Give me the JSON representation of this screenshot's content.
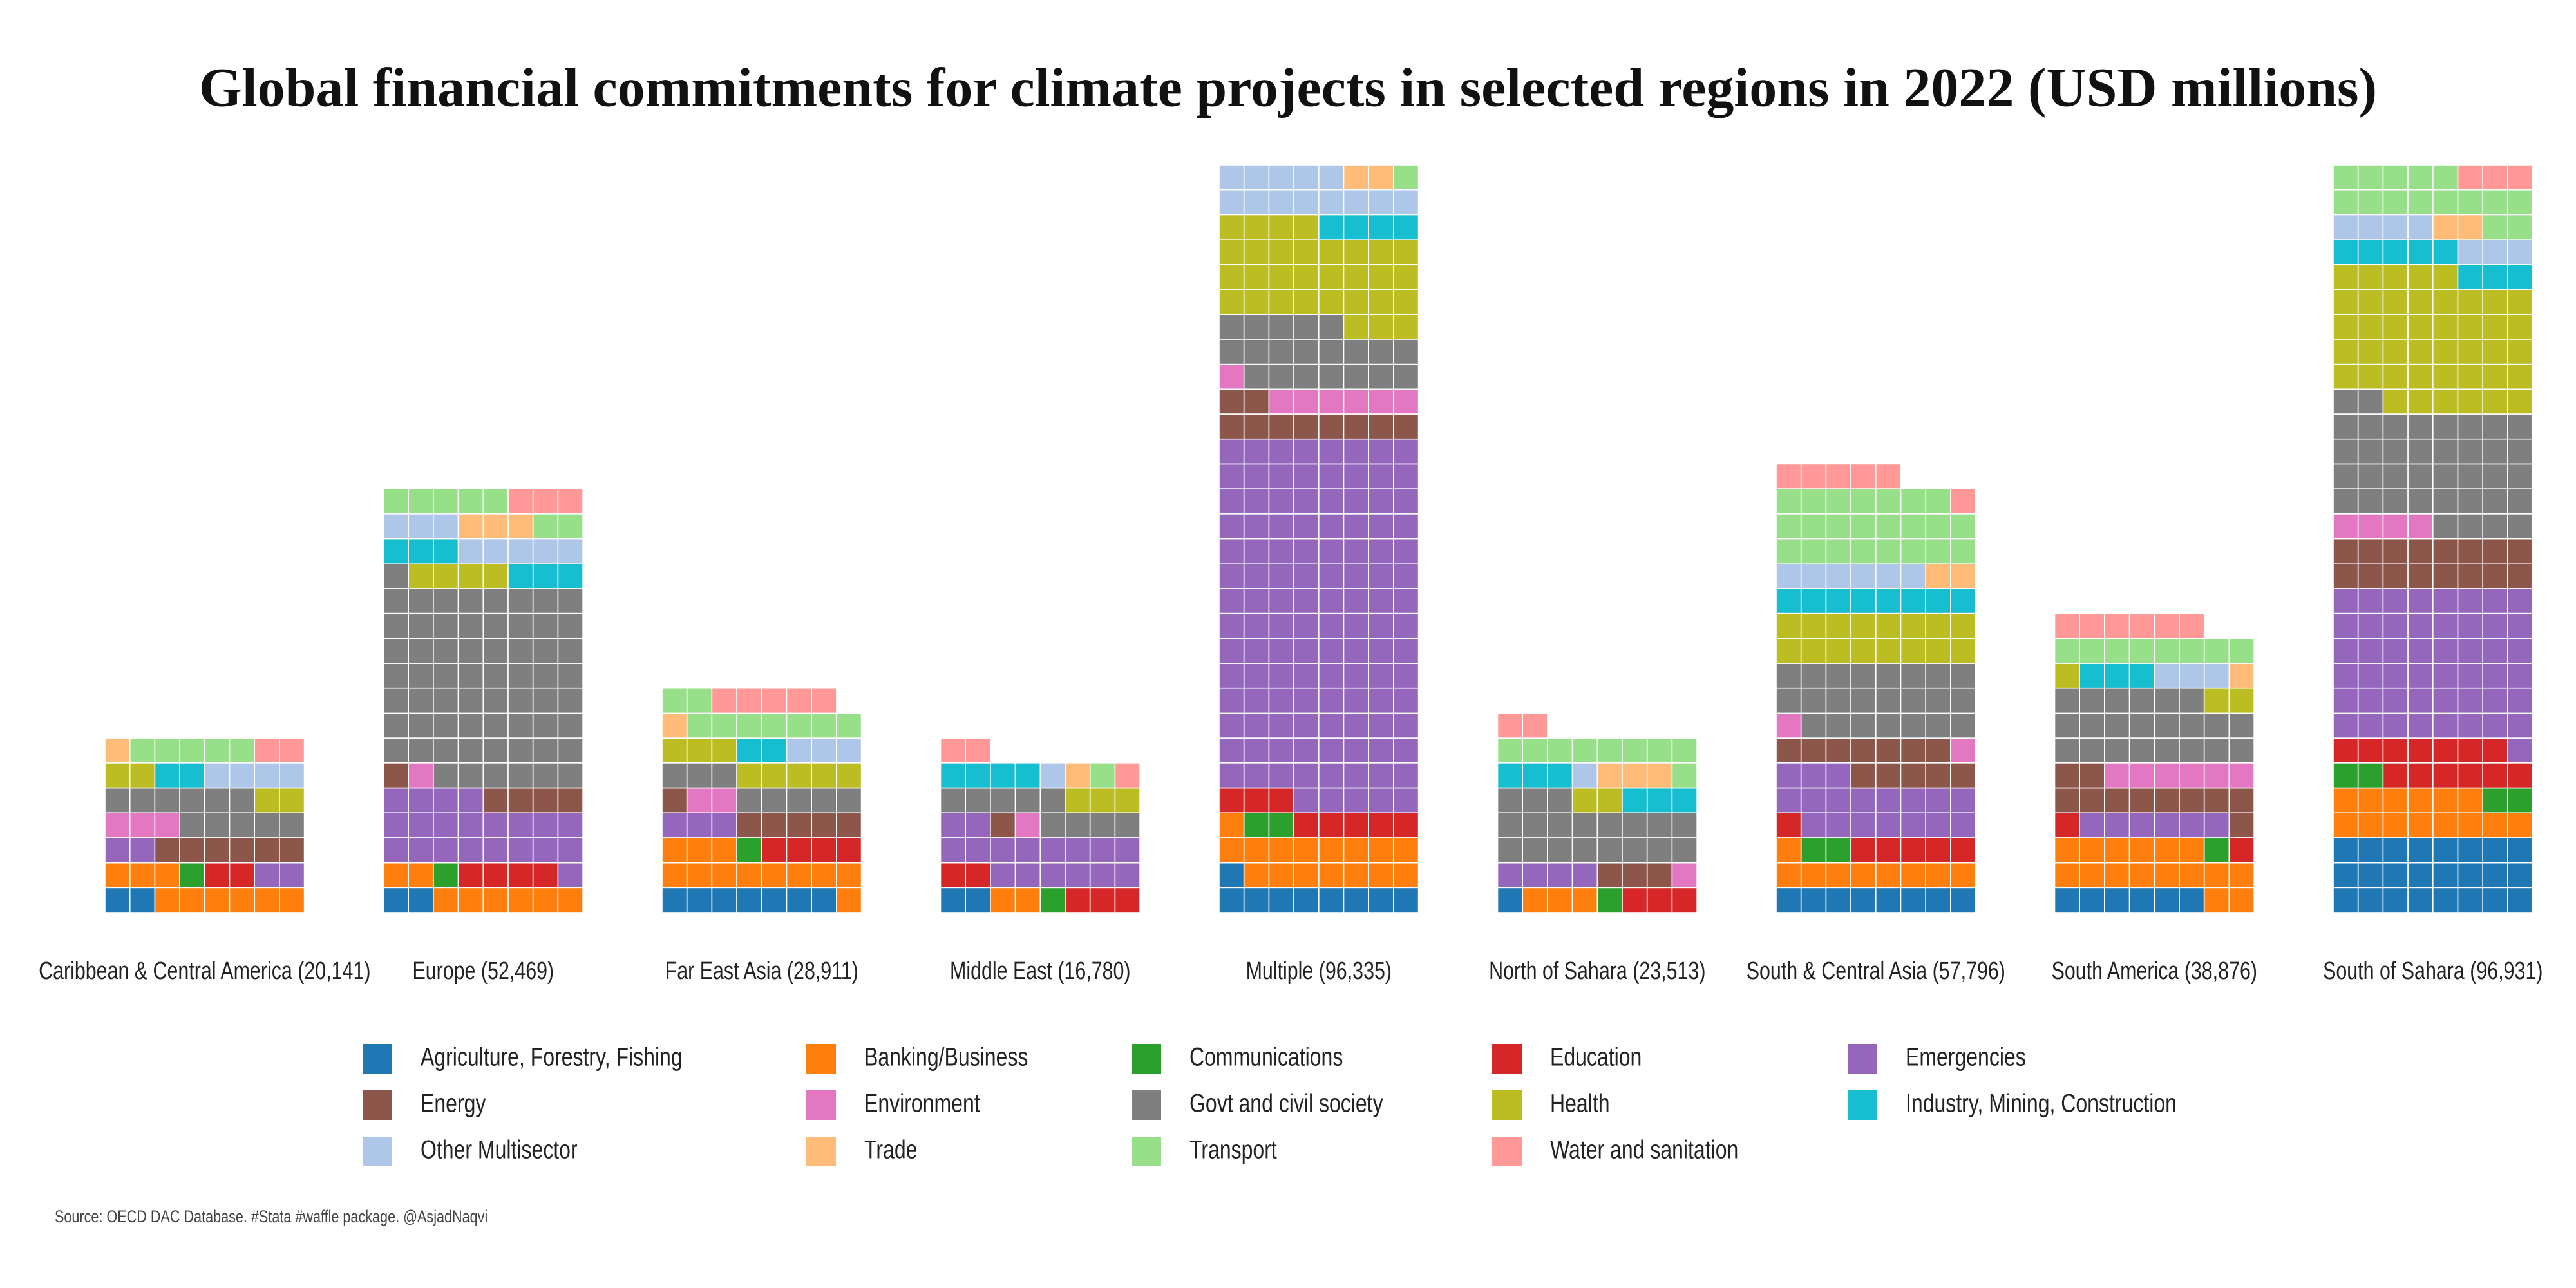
{
  "chart_data": {
    "type": "waffle",
    "title": "Global financial commitments for climate projects in selected regions in 2022 (USD millions)",
    "source": "Source: OECD DAC Database. #Stata #waffle package. @AsjadNaqvi",
    "categories": [
      "Caribbean & Central America (20,141)",
      "Europe (52,469)",
      "Far East Asia (28,911)",
      "Middle East (16,780)",
      "Multiple (96,335)",
      "North of Sahara (23,513)",
      "South & Central Asia (57,796)",
      "South America (38,876)",
      "South of Sahara (96,931)"
    ],
    "series": [
      {
        "name": "Agriculture, Forestry, Fishing",
        "color": "#1f77b4",
        "values": [
          800,
          800,
          2800,
          800,
          3600,
          400,
          3200,
          2400,
          9600
        ]
      },
      {
        "name": "Banking/Business",
        "color": "#ff7f0e",
        "values": [
          3600,
          3200,
          4800,
          800,
          6400,
          1200,
          3600,
          6400,
          5600
        ]
      },
      {
        "name": "Communications",
        "color": "#2ca02c",
        "values": [
          400,
          400,
          400,
          400,
          800,
          400,
          800,
          400,
          1600
        ]
      },
      {
        "name": "Education",
        "color": "#d62728",
        "values": [
          800,
          1600,
          1600,
          2000,
          3200,
          1200,
          2400,
          800,
          5200
        ]
      },
      {
        "name": "Emergencies",
        "color": "#9467bd",
        "values": [
          1600,
          8400,
          1200,
          6400,
          46800,
          1600,
          7200,
          2400,
          19600
        ]
      },
      {
        "name": "Energy",
        "color": "#8c564b",
        "values": [
          2400,
          2000,
          2400,
          400,
          4000,
          1200,
          4800,
          4400,
          6400
        ]
      },
      {
        "name": "Environment",
        "color": "#e377c2",
        "values": [
          1200,
          400,
          800,
          400,
          2800,
          400,
          800,
          2400,
          1600
        ]
      },
      {
        "name": "Govt and civil society",
        "color": "#7f7f7f",
        "values": [
          4400,
          25200,
          3200,
          3600,
          8000,
          7600,
          9200,
          8800,
          15200
        ]
      },
      {
        "name": "Health",
        "color": "#bcbd22",
        "values": [
          1600,
          1600,
          3200,
          1200,
          12400,
          800,
          6400,
          1200,
          17200
        ]
      },
      {
        "name": "Industry, Mining, Construction",
        "color": "#17becf",
        "values": [
          800,
          2400,
          800,
          1600,
          1600,
          2400,
          3200,
          1200,
          3200
        ]
      },
      {
        "name": "Other Multisector",
        "color": "#aec7e8",
        "values": [
          1600,
          3200,
          1200,
          400,
          5200,
          400,
          2400,
          1200,
          2800
        ]
      },
      {
        "name": "Trade",
        "color": "#ffbb78",
        "values": [
          400,
          1200,
          400,
          400,
          800,
          1200,
          800,
          400,
          800
        ]
      },
      {
        "name": "Transport",
        "color": "#98df8a",
        "values": [
          2000,
          2800,
          3600,
          400,
          400,
          3600,
          9200,
          3200,
          6000
        ]
      },
      {
        "name": "Water and sanitation",
        "color": "#ff9896",
        "values": [
          800,
          1200,
          2000,
          1200,
          0,
          800,
          2400,
          2400,
          1200
        ]
      }
    ]
  }
}
